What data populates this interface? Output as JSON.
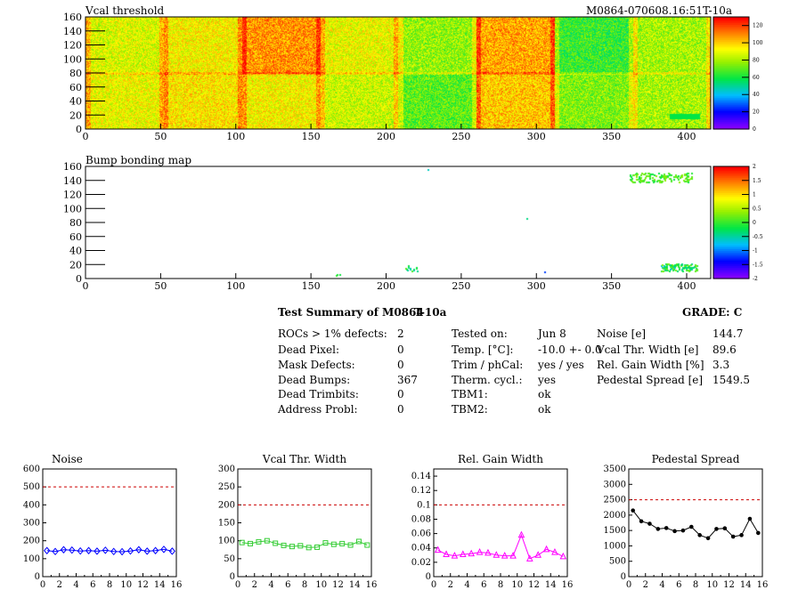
{
  "header": {
    "left_title": "Vcal threshold",
    "right_title": "M0864-070608.16:51T-10a"
  },
  "maps": [
    {
      "title": "Vcal threshold",
      "xticks": [
        "0",
        "50",
        "100",
        "150",
        "200",
        "250",
        "300",
        "350",
        "400"
      ],
      "yticks": [
        "0",
        "20",
        "40",
        "60",
        "80",
        "100",
        "120",
        "140",
        "160"
      ],
      "xlim": [
        0,
        416
      ],
      "ylim": [
        0,
        160
      ],
      "palette_ticks": [
        "0",
        "20",
        "40",
        "60",
        "80",
        "100",
        "120"
      ],
      "palette_range": [
        0,
        130
      ]
    },
    {
      "title": "Bump bonding map",
      "xticks": [
        "0",
        "50",
        "100",
        "150",
        "200",
        "250",
        "300",
        "350",
        "400"
      ],
      "yticks": [
        "0",
        "20",
        "40",
        "60",
        "80",
        "100",
        "120",
        "140",
        "160"
      ],
      "xlim": [
        0,
        416
      ],
      "ylim": [
        0,
        160
      ],
      "palette_ticks": [
        "-2",
        "-1.5",
        "-1",
        "-0.5",
        "0",
        "0.5",
        "1",
        "1.5",
        "2"
      ],
      "palette_range": [
        -2,
        2
      ]
    }
  ],
  "summary": {
    "title": "Test Summary of M0864",
    "temp_label": "T-10a",
    "grade": "GRADE:  C",
    "col1": [
      {
        "label": "ROCs > 1% defects:",
        "value": "2"
      },
      {
        "label": "Dead Pixel:",
        "value": "0"
      },
      {
        "label": "Mask Defects:",
        "value": "0"
      },
      {
        "label": "Dead Bumps:",
        "value": "367"
      },
      {
        "label": "Dead Trimbits:",
        "value": "0"
      },
      {
        "label": "Address Probl:",
        "value": "0"
      }
    ],
    "col2": [
      {
        "label": "Tested on:",
        "value": "Jun 8"
      },
      {
        "label": "Temp. [°C]:",
        "value": "-10.0 +- 0.0"
      },
      {
        "label": "Trim / phCal:",
        "value": "yes / yes"
      },
      {
        "label": "Therm. cycl.:",
        "value": "yes"
      },
      {
        "label": "TBM1:",
        "value": "ok"
      },
      {
        "label": "TBM2:",
        "value": "ok"
      }
    ],
    "col3": [
      {
        "label": "Noise [e]",
        "value": "144.7"
      },
      {
        "label": "Vcal Thr. Width [e]",
        "value": "89.6"
      },
      {
        "label": "Rel. Gain Width [%]",
        "value": "3.3"
      },
      {
        "label": "Pedestal Spread [e]",
        "value": "1549.5"
      }
    ]
  },
  "chart_data": [
    {
      "type": "line",
      "title": "Noise",
      "color": "#0000ff",
      "marker": "diamond",
      "x": [
        0,
        1,
        2,
        3,
        4,
        5,
        6,
        7,
        8,
        9,
        10,
        11,
        12,
        13,
        14,
        15
      ],
      "values": [
        145,
        140,
        150,
        148,
        143,
        145,
        142,
        147,
        140,
        139,
        143,
        150,
        142,
        145,
        152,
        142
      ],
      "xlim": [
        0,
        16
      ],
      "ylim": [
        0,
        600
      ],
      "yticks": [
        "0",
        "100",
        "200",
        "300",
        "400",
        "500",
        "600"
      ],
      "xticks": [
        "0",
        "2",
        "4",
        "6",
        "8",
        "10",
        "12",
        "14",
        "16"
      ],
      "limit": 500
    },
    {
      "type": "line",
      "title": "Vcal Thr. Width",
      "color": "#33cc33",
      "marker": "square",
      "x": [
        0,
        1,
        2,
        3,
        4,
        5,
        6,
        7,
        8,
        9,
        10,
        11,
        12,
        13,
        14,
        15
      ],
      "values": [
        95,
        92,
        97,
        100,
        93,
        87,
        84,
        86,
        81,
        82,
        94,
        90,
        92,
        88,
        98,
        88
      ],
      "xlim": [
        0,
        16
      ],
      "ylim": [
        0,
        300
      ],
      "yticks": [
        "0",
        "50",
        "100",
        "150",
        "200",
        "250",
        "300"
      ],
      "xticks": [
        "0",
        "2",
        "4",
        "6",
        "8",
        "10",
        "12",
        "14",
        "16"
      ],
      "limit": 200
    },
    {
      "type": "line",
      "title": "Rel. Gain Width",
      "color": "#ff00ff",
      "marker": "triangle",
      "x": [
        0,
        1,
        2,
        3,
        4,
        5,
        6,
        7,
        8,
        9,
        10,
        11,
        12,
        13,
        14,
        15
      ],
      "values": [
        0.037,
        0.031,
        0.029,
        0.031,
        0.032,
        0.034,
        0.033,
        0.03,
        0.029,
        0.029,
        0.058,
        0.025,
        0.03,
        0.038,
        0.034,
        0.028
      ],
      "xlim": [
        0,
        16
      ],
      "ylim": [
        0,
        0.15
      ],
      "yticks": [
        "0",
        "0.02",
        "0.04",
        "0.06",
        "0.08",
        "0.1",
        "0.12",
        "0.14"
      ],
      "xticks": [
        "0",
        "2",
        "4",
        "6",
        "8",
        "10",
        "12",
        "14",
        "16"
      ],
      "limit": 0.1
    },
    {
      "type": "line",
      "title": "Pedestal Spread",
      "color": "#000000",
      "marker": "circle",
      "x": [
        0,
        1,
        2,
        3,
        4,
        5,
        6,
        7,
        8,
        9,
        10,
        11,
        12,
        13,
        14,
        15
      ],
      "values": [
        2150,
        1800,
        1720,
        1550,
        1580,
        1480,
        1500,
        1620,
        1350,
        1250,
        1550,
        1570,
        1300,
        1350,
        1880,
        1420
      ],
      "xlim": [
        0,
        16
      ],
      "ylim": [
        0,
        3500
      ],
      "yticks": [
        "0",
        "500",
        "1000",
        "1500",
        "2000",
        "2500",
        "3000",
        "3500"
      ],
      "xticks": [
        "0",
        "2",
        "4",
        "6",
        "8",
        "10",
        "12",
        "14",
        "16"
      ],
      "limit": 2500
    }
  ]
}
